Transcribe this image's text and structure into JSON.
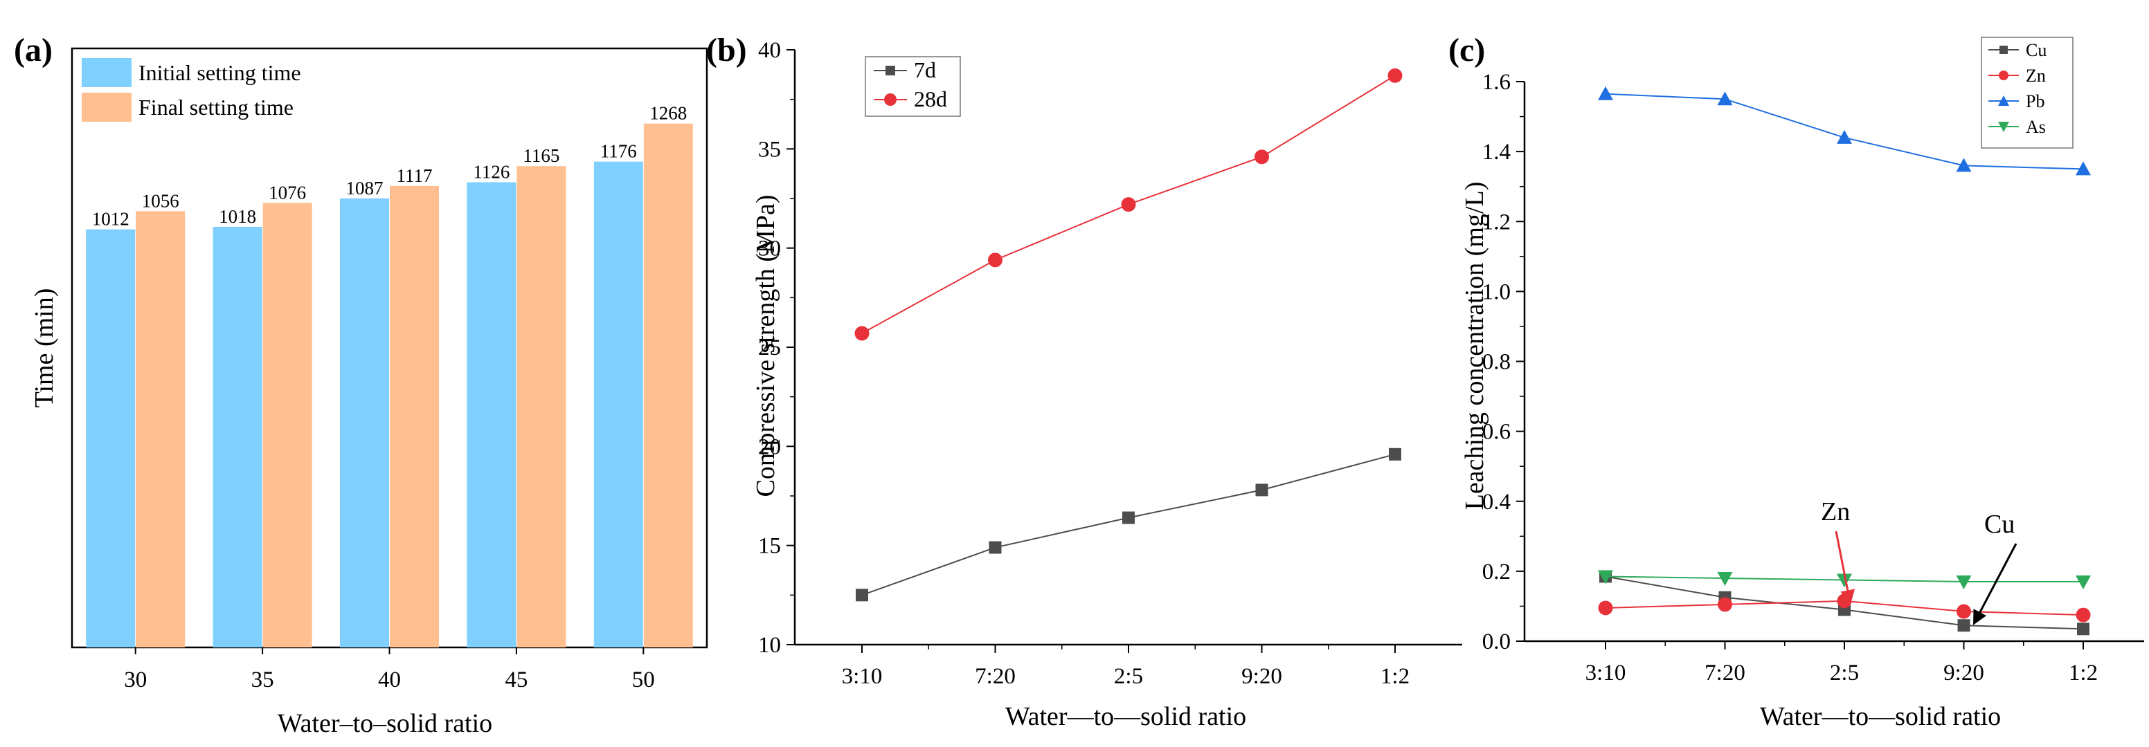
{
  "panels": [
    {
      "letter": "(a)",
      "chart_data": {
        "type": "bar",
        "categories": [
          "30",
          "35",
          "40",
          "45",
          "50"
        ],
        "series": [
          {
            "name": "Initial setting time",
            "values": [
              1012,
              1018,
              1087,
              1126,
              1176
            ],
            "color": "#7fd0ff"
          },
          {
            "name": "Final setting time",
            "values": [
              1056,
              1076,
              1117,
              1165,
              1268
            ],
            "color": "#ffbf91"
          }
        ],
        "xlabel": "Water–to–solid ratio",
        "ylabel": "Time (min)",
        "ylim": [
          0,
          1450
        ],
        "show_value_labels": true,
        "legend": "top-left"
      }
    },
    {
      "letter": "(b)",
      "chart_data": {
        "type": "line",
        "categories": [
          "3:10",
          "7:20",
          "2:5",
          "9:20",
          "1:2"
        ],
        "series": [
          {
            "name": "7d",
            "values": [
              12.5,
              14.9,
              16.4,
              17.8,
              19.6
            ],
            "color": "#4d4d4d",
            "marker": "square"
          },
          {
            "name": "28d",
            "values": [
              25.7,
              29.4,
              32.2,
              34.6,
              38.7
            ],
            "color": "#e8323a",
            "marker": "circle"
          }
        ],
        "xlabel": "Water—to—solid ratio",
        "ylabel": "Compressive strength (MPa)",
        "ylim": [
          10,
          40
        ],
        "yticks": [
          "10",
          "15",
          "20",
          "25",
          "30",
          "35",
          "40"
        ],
        "legend": "top-left"
      }
    },
    {
      "letter": "(c)",
      "chart_data": {
        "type": "line",
        "categories": [
          "3:10",
          "7:20",
          "2:5",
          "9:20",
          "1:2"
        ],
        "series": [
          {
            "name": "Cu",
            "values": [
              0.185,
              0.125,
              0.09,
              0.045,
              0.035
            ],
            "color": "#4d4d4d",
            "marker": "square"
          },
          {
            "name": "Zn",
            "values": [
              0.095,
              0.105,
              0.115,
              0.085,
              0.075
            ],
            "color": "#e8323a",
            "marker": "circle"
          },
          {
            "name": "Pb",
            "values": [
              1.565,
              1.55,
              1.44,
              1.36,
              1.35
            ],
            "color": "#1f6fe0",
            "marker": "triangle-up"
          },
          {
            "name": "As",
            "values": [
              0.185,
              0.18,
              0.175,
              0.17,
              0.17
            ],
            "color": "#2eaa5a",
            "marker": "triangle-down"
          }
        ],
        "xlabel": "Water—to—solid ratio",
        "ylabel": "Leaching concentration (mg/L)",
        "ylim": [
          0,
          1.6
        ],
        "yticks": [
          "0.0",
          "0.2",
          "0.4",
          "0.6",
          "0.8",
          "1.0",
          "1.2",
          "1.4",
          "1.6"
        ],
        "legend": "top-right",
        "annotations": [
          {
            "text": "Zn",
            "points_to": "Zn at 2:5",
            "color": "#e8323a"
          },
          {
            "text": "Cu",
            "points_to": "Cu at 9:20",
            "color": "#000000"
          }
        ]
      }
    }
  ]
}
